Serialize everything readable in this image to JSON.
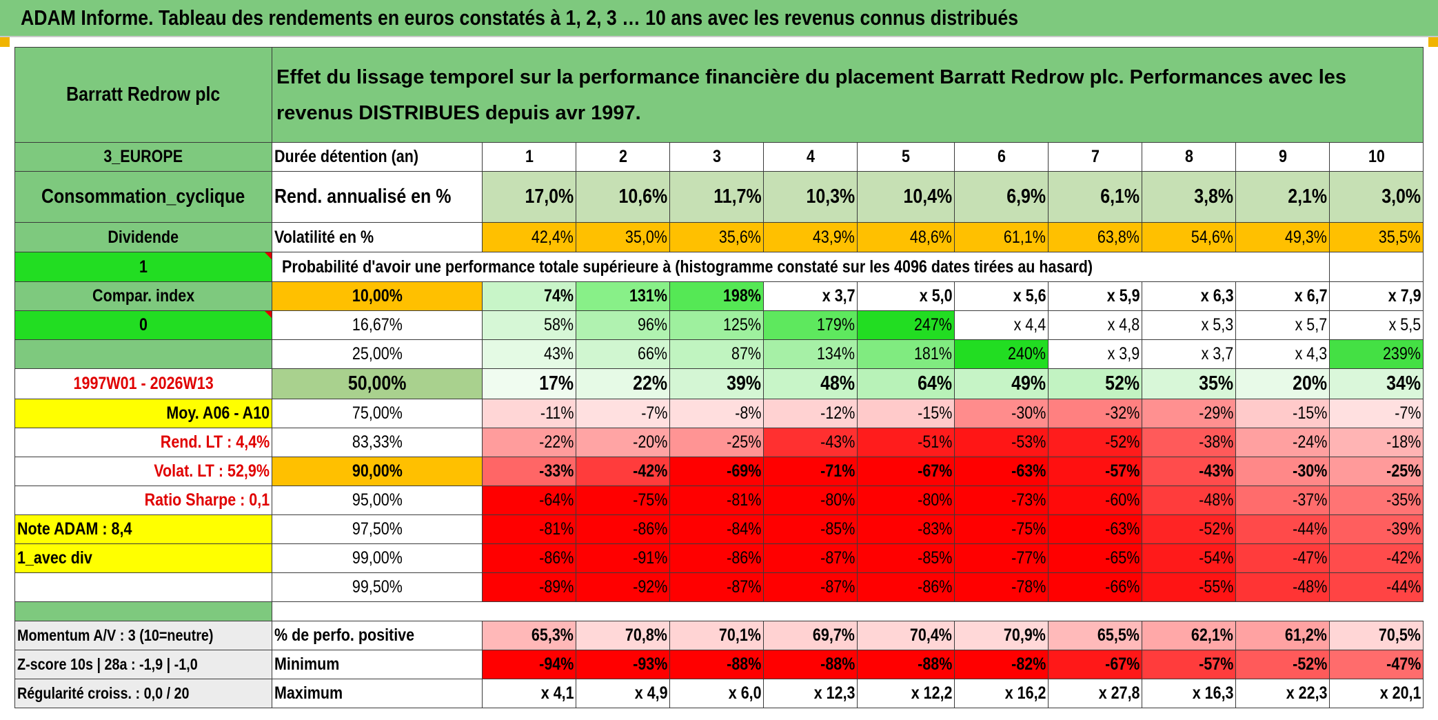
{
  "title": "ADAM Informe. Tableau des rendements en euros constatés à 1, 2, 3 … 10 ans avec les revenus connus distribués",
  "colors": {
    "header_green": "#7ec97e",
    "bright_green": "#22dd22",
    "yellow": "#ffff00",
    "orange": "#ffc000",
    "red_text": "#e00000"
  },
  "left": {
    "fund_name": "Barratt Redrow plc",
    "region": "3_EUROPE",
    "sector": "Consommation_cyclique",
    "type": "Dividende",
    "flag1": "1",
    "compar_index": "Compar. index",
    "flag0": "0",
    "period": "1997W01 - 2026W13",
    "moy": "Moy. A06 - A10",
    "rend_lt": "Rend. LT :   4,4%",
    "volat_lt": "Volat. LT :   52,9%",
    "sharpe": "Ratio Sharpe :   0,1",
    "note": "Note ADAM : 8,4",
    "avec_div": "1_avec div",
    "momentum": "Momentum A/V : 3 (10=neutre)",
    "zscore": "Z-score 10s | 28a : -1,9 | -1,0",
    "regularite": "Régularité croiss. : 0,0 / 20"
  },
  "header": {
    "description": "Effet du lissage temporel sur la performance financière du placement Barratt Redrow plc. Performances avec les revenus DISTRIBUES depuis avr 1997.",
    "duree_label": "Durée détention (an)",
    "years": [
      "1",
      "2",
      "3",
      "4",
      "5",
      "6",
      "7",
      "8",
      "9",
      "10"
    ]
  },
  "rend": {
    "label": "Rend. annualisé en %",
    "values": [
      "17,0%",
      "10,6%",
      "11,7%",
      "10,3%",
      "10,4%",
      "6,9%",
      "6,1%",
      "3,8%",
      "2,1%",
      "3,0%"
    ]
  },
  "volat": {
    "label": "Volatilité en %",
    "values": [
      "42,4%",
      "35,0%",
      "35,6%",
      "43,9%",
      "48,6%",
      "61,1%",
      "63,8%",
      "54,6%",
      "49,3%",
      "35,5%"
    ]
  },
  "proba_label": "Probabilité d'avoir une performance totale supérieure à (histogramme constaté sur les 4096 dates tirées au hasard)",
  "quantiles": [
    {
      "label": "10,00%",
      "values": [
        "74%",
        "131%",
        "198%",
        "x 3,7",
        "x 5,0",
        "x 5,6",
        "x 5,9",
        "x 6,3",
        "x 6,7",
        "x 7,9"
      ]
    },
    {
      "label": "16,67%",
      "values": [
        "58%",
        "96%",
        "125%",
        "179%",
        "247%",
        "x 4,4",
        "x 4,8",
        "x 5,3",
        "x 5,7",
        "x 5,5"
      ]
    },
    {
      "label": "25,00%",
      "values": [
        "43%",
        "66%",
        "87%",
        "134%",
        "181%",
        "240%",
        "x 3,9",
        "x 3,7",
        "x 4,3",
        "239%"
      ]
    },
    {
      "label": "50,00%",
      "values": [
        "17%",
        "22%",
        "39%",
        "48%",
        "64%",
        "49%",
        "52%",
        "35%",
        "20%",
        "34%"
      ]
    },
    {
      "label": "75,00%",
      "values": [
        "-11%",
        "-7%",
        "-8%",
        "-12%",
        "-15%",
        "-30%",
        "-32%",
        "-29%",
        "-15%",
        "-7%"
      ]
    },
    {
      "label": "83,33%",
      "values": [
        "-22%",
        "-20%",
        "-25%",
        "-43%",
        "-51%",
        "-53%",
        "-52%",
        "-38%",
        "-24%",
        "-18%"
      ]
    },
    {
      "label": "90,00%",
      "values": [
        "-33%",
        "-42%",
        "-69%",
        "-71%",
        "-67%",
        "-63%",
        "-57%",
        "-43%",
        "-30%",
        "-25%"
      ]
    },
    {
      "label": "95,00%",
      "values": [
        "-64%",
        "-75%",
        "-81%",
        "-80%",
        "-80%",
        "-73%",
        "-60%",
        "-48%",
        "-37%",
        "-35%"
      ]
    },
    {
      "label": "97,50%",
      "values": [
        "-81%",
        "-86%",
        "-84%",
        "-85%",
        "-83%",
        "-75%",
        "-63%",
        "-52%",
        "-44%",
        "-39%"
      ]
    },
    {
      "label": "99,00%",
      "values": [
        "-86%",
        "-91%",
        "-86%",
        "-87%",
        "-85%",
        "-77%",
        "-65%",
        "-54%",
        "-47%",
        "-42%"
      ]
    },
    {
      "label": "99,50%",
      "values": [
        "-89%",
        "-92%",
        "-87%",
        "-87%",
        "-86%",
        "-78%",
        "-66%",
        "-55%",
        "-48%",
        "-44%"
      ]
    }
  ],
  "positive": {
    "label": "% de perfo. positive",
    "values": [
      "65,3%",
      "70,8%",
      "70,1%",
      "69,7%",
      "70,4%",
      "70,9%",
      "65,5%",
      "62,1%",
      "61,2%",
      "70,5%"
    ]
  },
  "minimum": {
    "label": "Minimum",
    "values": [
      "-94%",
      "-93%",
      "-88%",
      "-88%",
      "-88%",
      "-82%",
      "-67%",
      "-57%",
      "-52%",
      "-47%"
    ]
  },
  "maximum": {
    "label": "Maximum",
    "values": [
      "x 4,1",
      "x 4,9",
      "x 6,0",
      "x 12,3",
      "x 12,2",
      "x 16,2",
      "x 27,8",
      "x 16,3",
      "x 22,3",
      "x 20,1"
    ]
  },
  "cell_colors": {
    "rend": [
      "#c6e0b4",
      "#c6e0b4",
      "#c6e0b4",
      "#c6e0b4",
      "#c6e0b4",
      "#c6e0b4",
      "#c6e0b4",
      "#c6e0b4",
      "#c6e0b4",
      "#c6e0b4"
    ],
    "volat": [
      "#ffc000",
      "#ffc000",
      "#ffc000",
      "#ffc000",
      "#ffc000",
      "#ffc000",
      "#ffc000",
      "#ffc000",
      "#ffc000",
      "#ffc000"
    ],
    "quantiles": [
      [
        "#c8f5c8",
        "#88f088",
        "#55e855",
        "#ffffff",
        "#ffffff",
        "#ffffff",
        "#ffffff",
        "#ffffff",
        "#ffffff",
        "#ffffff"
      ],
      [
        "#d6f7d6",
        "#b0f2b0",
        "#9ef09e",
        "#5ee85e",
        "#22dd22",
        "#ffffff",
        "#ffffff",
        "#ffffff",
        "#ffffff",
        "#ffffff"
      ],
      [
        "#e4fae4",
        "#d0f6d0",
        "#c0f4c0",
        "#a6f0a6",
        "#80eb80",
        "#22dd22",
        "#ffffff",
        "#ffffff",
        "#ffffff",
        "#44e044"
      ],
      [
        "#f0fcf0",
        "#e6fae6",
        "#d4f6d4",
        "#c8f5c8",
        "#b8f2b8",
        "#c6f4c6",
        "#c2f3c2",
        "#d8f7d8",
        "#e8fae8",
        "#daf7da"
      ],
      [
        "#ffd6d6",
        "#ffe0e0",
        "#ffdede",
        "#ffd2d2",
        "#ffcaca",
        "#ff8c8c",
        "#ff8080",
        "#ff9090",
        "#ffcaca",
        "#ffe0e0"
      ],
      [
        "#ff9c9c",
        "#ffa4a4",
        "#ff9494",
        "#ff3030",
        "#ff1c1c",
        "#ff1616",
        "#ff1c1c",
        "#ff5a5a",
        "#ffa0a0",
        "#ffb4b4"
      ],
      [
        "#ff6666",
        "#ff3c3c",
        "#ff0000",
        "#ff0000",
        "#ff0000",
        "#ff0000",
        "#ff1010",
        "#ff4c4c",
        "#ff8888",
        "#ff9a9a"
      ],
      [
        "#ff0000",
        "#ff0000",
        "#ff0000",
        "#ff0000",
        "#ff0000",
        "#ff0000",
        "#ff0a0a",
        "#ff3c3c",
        "#ff6c6c",
        "#ff7474"
      ],
      [
        "#ff0000",
        "#ff0000",
        "#ff0000",
        "#ff0000",
        "#ff0000",
        "#ff0000",
        "#ff0000",
        "#ff2424",
        "#ff4a4a",
        "#ff5e5e"
      ],
      [
        "#ff0000",
        "#ff0000",
        "#ff0000",
        "#ff0000",
        "#ff0000",
        "#ff0000",
        "#ff0000",
        "#ff1a1a",
        "#ff3c3c",
        "#ff4c4c"
      ],
      [
        "#ff0000",
        "#ff0000",
        "#ff0000",
        "#ff0000",
        "#ff0000",
        "#ff0000",
        "#ff0000",
        "#ff1414",
        "#ff3434",
        "#ff4444"
      ]
    ],
    "positive": [
      "#ffb8b8",
      "#ffd8d8",
      "#ffd4d4",
      "#ffd2d2",
      "#ffd6d6",
      "#ffd8d8",
      "#ffbaba",
      "#ffa8a8",
      "#ffa2a2",
      "#ffd6d6"
    ],
    "minimum": [
      "#ff0000",
      "#ff0000",
      "#ff0000",
      "#ff0000",
      "#ff0000",
      "#ff0000",
      "#ff1818",
      "#ff3c3c",
      "#ff5a5a",
      "#ff6c6c"
    ],
    "maximum": [
      "#ffffff",
      "#ffffff",
      "#ffffff",
      "#ffffff",
      "#ffffff",
      "#ffffff",
      "#ffffff",
      "#ffffff",
      "#ffffff",
      "#ffffff"
    ]
  }
}
